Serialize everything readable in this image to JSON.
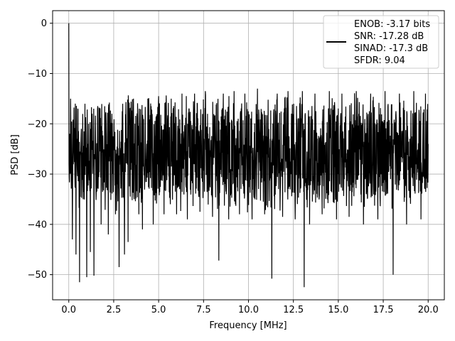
{
  "chart_data": {
    "type": "line",
    "xlabel": "Frequency [MHz]",
    "ylabel": "PSD [dB]",
    "xlim": [
      -0.9,
      20.9
    ],
    "ylim": [
      -55,
      2.5
    ],
    "xticks": [
      0.0,
      2.5,
      5.0,
      7.5,
      10.0,
      12.5,
      15.0,
      17.5,
      20.0
    ],
    "xtick_labels": [
      "0.0",
      "2.5",
      "5.0",
      "7.5",
      "10.0",
      "12.5",
      "15.0",
      "17.5",
      "20.0"
    ],
    "yticks": [
      0,
      -10,
      -20,
      -30,
      -40,
      -50
    ],
    "ytick_labels": [
      "0",
      "−10",
      "−20",
      "−30",
      "−40",
      "−50"
    ],
    "grid": true,
    "legend_position": "top-right",
    "legend": [
      "ENOB: -3.17 bits",
      "SNR: -17.28 dB",
      "SINAD: -17.3 dB",
      "SFDR: 9.04"
    ],
    "series": [
      {
        "color": "#000000",
        "description": "dense noisy PSD trace spanning 0 to 20 MHz",
        "points": [
          [
            0.0,
            0.0
          ],
          [
            0.05,
            -22.0
          ],
          [
            0.1,
            -15.0
          ],
          [
            0.2,
            -43.0
          ],
          [
            0.3,
            -25.0
          ],
          [
            0.4,
            -46.0
          ],
          [
            0.5,
            -17.0
          ],
          [
            0.6,
            -51.5
          ],
          [
            0.7,
            -21.0
          ],
          [
            0.8,
            -35.0
          ],
          [
            0.9,
            -16.0
          ],
          [
            1.0,
            -50.5
          ],
          [
            1.1,
            -20.0
          ],
          [
            1.2,
            -45.5
          ],
          [
            1.3,
            -18.0
          ],
          [
            1.4,
            -50.2
          ],
          [
            1.6,
            -17.0
          ],
          [
            1.8,
            -40.0
          ],
          [
            2.0,
            -16.5
          ],
          [
            2.2,
            -42.0
          ],
          [
            2.4,
            -18.0
          ],
          [
            2.6,
            -38.0
          ],
          [
            2.8,
            -48.5
          ],
          [
            3.0,
            -16.0
          ],
          [
            3.1,
            -46.0
          ],
          [
            3.3,
            -43.5
          ],
          [
            3.6,
            -15.0
          ],
          [
            3.9,
            -38.0
          ],
          [
            4.1,
            -41.0
          ],
          [
            4.4,
            -15.0
          ],
          [
            4.7,
            -40.0
          ],
          [
            5.0,
            -14.5
          ],
          [
            5.3,
            -38.0
          ],
          [
            5.7,
            -15.0
          ],
          [
            6.0,
            -38.0
          ],
          [
            6.3,
            -14.0
          ],
          [
            6.6,
            -39.0
          ],
          [
            7.0,
            -14.0
          ],
          [
            7.3,
            -37.5
          ],
          [
            7.6,
            -13.5
          ],
          [
            8.0,
            -38.5
          ],
          [
            8.35,
            -47.2
          ],
          [
            8.6,
            -14.0
          ],
          [
            8.9,
            -39.0
          ],
          [
            9.2,
            -13.5
          ],
          [
            9.5,
            -38.0
          ],
          [
            9.8,
            -14.0
          ],
          [
            10.2,
            -39.0
          ],
          [
            10.5,
            -13.0
          ],
          [
            10.9,
            -38.0
          ],
          [
            11.3,
            -50.8
          ],
          [
            11.6,
            -14.0
          ],
          [
            11.9,
            -38.5
          ],
          [
            12.2,
            -13.5
          ],
          [
            12.6,
            -39.0
          ],
          [
            13.0,
            -13.5
          ],
          [
            13.1,
            -52.5
          ],
          [
            13.4,
            -40.0
          ],
          [
            13.7,
            -14.0
          ],
          [
            14.1,
            -38.0
          ],
          [
            14.5,
            -13.5
          ],
          [
            14.9,
            -39.0
          ],
          [
            15.2,
            -14.0
          ],
          [
            15.6,
            -38.5
          ],
          [
            16.0,
            -13.5
          ],
          [
            16.4,
            -40.0
          ],
          [
            16.8,
            -14.0
          ],
          [
            17.2,
            -39.0
          ],
          [
            17.6,
            -13.5
          ],
          [
            18.05,
            -50.0
          ],
          [
            18.4,
            -14.0
          ],
          [
            18.8,
            -40.0
          ],
          [
            19.2,
            -13.5
          ],
          [
            19.6,
            -39.0
          ],
          [
            19.85,
            -14.0
          ],
          [
            20.0,
            -24.0
          ]
        ]
      }
    ]
  }
}
